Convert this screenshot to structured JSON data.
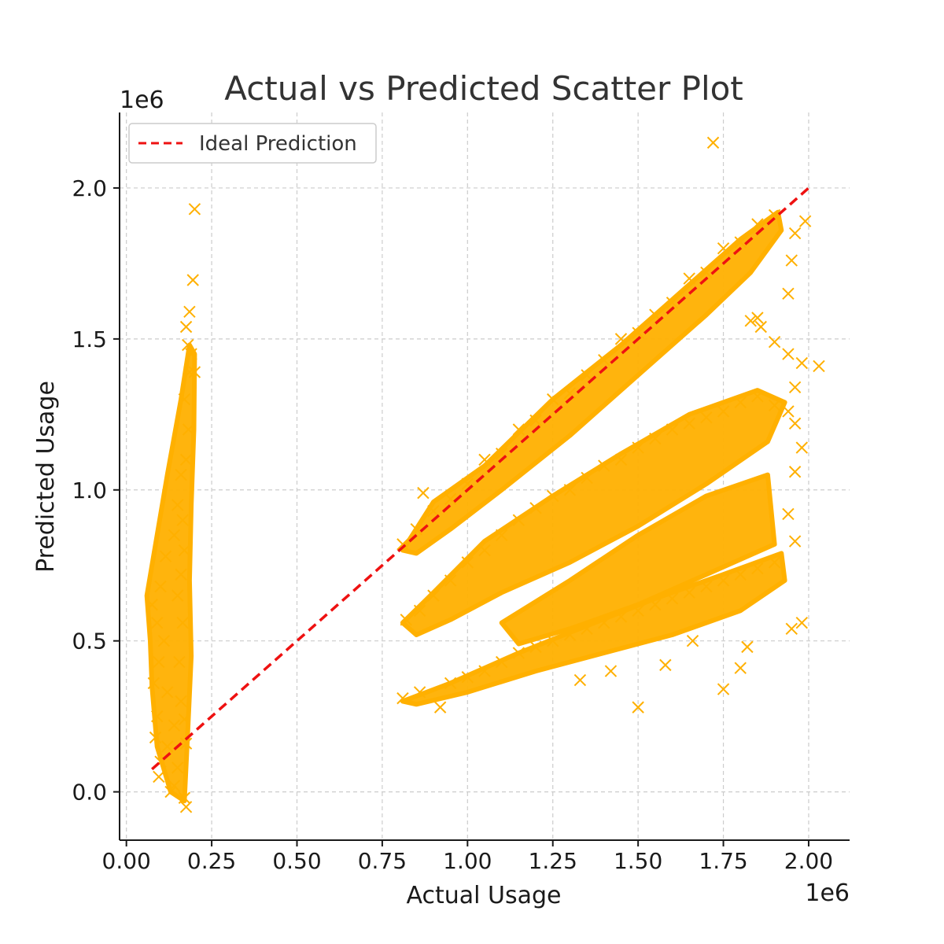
{
  "chart_data": {
    "type": "scatter",
    "title": "Actual vs Predicted Scatter Plot",
    "xlabel": "Actual Usage",
    "ylabel": "Predicted Usage",
    "x_offset_label": "1e6",
    "y_offset_label": "1e6",
    "xlim": [
      -20000,
      2120000
    ],
    "ylim": [
      -160000,
      2250000
    ],
    "x_ticks": [
      0,
      250000,
      500000,
      750000,
      1000000,
      1250000,
      1500000,
      1750000,
      2000000
    ],
    "x_tick_labels": [
      "0.00",
      "0.25",
      "0.50",
      "0.75",
      "1.00",
      "1.25",
      "1.50",
      "1.75",
      "2.00"
    ],
    "y_ticks": [
      0,
      500000,
      1000000,
      1500000,
      2000000
    ],
    "y_tick_labels": [
      "0.0",
      "0.5",
      "1.0",
      "1.5",
      "2.0"
    ],
    "grid": true,
    "legend_position": "top-left",
    "marker": "x",
    "series": [
      {
        "name": "",
        "color": "#FFB000",
        "points": [
          [
            200000,
            1930000
          ],
          [
            195000,
            1695000
          ],
          [
            185000,
            1590000
          ],
          [
            175000,
            1540000
          ],
          [
            180000,
            1480000
          ],
          [
            190000,
            1450000
          ],
          [
            185000,
            1390000
          ],
          [
            200000,
            1390000
          ],
          [
            170000,
            1300000
          ],
          [
            182000,
            1200000
          ],
          [
            160000,
            1050000
          ],
          [
            175000,
            1100000
          ],
          [
            150000,
            950000
          ],
          [
            165000,
            900000
          ],
          [
            140000,
            850000
          ],
          [
            170000,
            800000
          ],
          [
            115000,
            780000
          ],
          [
            160000,
            720000
          ],
          [
            100000,
            680000
          ],
          [
            150000,
            650000
          ],
          [
            75000,
            620000
          ],
          [
            90000,
            560000
          ],
          [
            165000,
            560000
          ],
          [
            110000,
            500000
          ],
          [
            95000,
            430000
          ],
          [
            155000,
            430000
          ],
          [
            80000,
            360000
          ],
          [
            120000,
            330000
          ],
          [
            160000,
            300000
          ],
          [
            90000,
            250000
          ],
          [
            140000,
            220000
          ],
          [
            170000,
            240000
          ],
          [
            85000,
            180000
          ],
          [
            120000,
            150000
          ],
          [
            175000,
            160000
          ],
          [
            100000,
            100000
          ],
          [
            150000,
            80000
          ],
          [
            95000,
            50000
          ],
          [
            140000,
            20000
          ],
          [
            170000,
            -20000
          ],
          [
            175000,
            -50000
          ],
          [
            130000,
            0
          ],
          [
            810000,
            820000
          ],
          [
            850000,
            870000
          ],
          [
            870000,
            990000
          ],
          [
            900000,
            930000
          ],
          [
            950000,
            970000
          ],
          [
            1000000,
            1020000
          ],
          [
            1050000,
            1100000
          ],
          [
            1100000,
            1120000
          ],
          [
            1150000,
            1200000
          ],
          [
            1200000,
            1230000
          ],
          [
            1250000,
            1300000
          ],
          [
            1300000,
            1320000
          ],
          [
            1350000,
            1380000
          ],
          [
            1400000,
            1430000
          ],
          [
            1450000,
            1500000
          ],
          [
            1500000,
            1520000
          ],
          [
            1550000,
            1580000
          ],
          [
            1600000,
            1620000
          ],
          [
            1650000,
            1700000
          ],
          [
            1700000,
            1720000
          ],
          [
            1750000,
            1800000
          ],
          [
            1800000,
            1820000
          ],
          [
            1850000,
            1880000
          ],
          [
            1900000,
            1910000
          ],
          [
            1720000,
            2150000
          ],
          [
            1990000,
            1890000
          ],
          [
            1960000,
            1850000
          ],
          [
            1950000,
            1760000
          ],
          [
            1940000,
            1650000
          ],
          [
            1830000,
            1560000
          ],
          [
            1850000,
            1570000
          ],
          [
            1860000,
            1540000
          ],
          [
            1900000,
            1490000
          ],
          [
            1940000,
            1450000
          ],
          [
            1980000,
            1420000
          ],
          [
            2030000,
            1410000
          ],
          [
            1960000,
            1340000
          ],
          [
            1940000,
            1260000
          ],
          [
            1960000,
            1220000
          ],
          [
            1980000,
            1140000
          ],
          [
            1960000,
            1060000
          ],
          [
            1940000,
            920000
          ],
          [
            1960000,
            830000
          ],
          [
            1980000,
            560000
          ],
          [
            1950000,
            540000
          ],
          [
            1820000,
            480000
          ],
          [
            1800000,
            410000
          ],
          [
            1750000,
            340000
          ],
          [
            1500000,
            280000
          ],
          [
            820000,
            570000
          ],
          [
            860000,
            600000
          ],
          [
            900000,
            650000
          ],
          [
            950000,
            700000
          ],
          [
            1000000,
            760000
          ],
          [
            1050000,
            800000
          ],
          [
            1100000,
            850000
          ],
          [
            1150000,
            900000
          ],
          [
            1200000,
            940000
          ],
          [
            1250000,
            980000
          ],
          [
            1300000,
            1000000
          ],
          [
            1350000,
            1040000
          ],
          [
            1400000,
            1080000
          ],
          [
            1450000,
            1100000
          ],
          [
            1500000,
            1140000
          ],
          [
            1550000,
            1170000
          ],
          [
            1600000,
            1200000
          ],
          [
            1650000,
            1220000
          ],
          [
            1700000,
            1240000
          ],
          [
            1750000,
            1260000
          ],
          [
            1800000,
            1290000
          ],
          [
            1850000,
            1310000
          ],
          [
            1900000,
            1280000
          ],
          [
            810000,
            310000
          ],
          [
            860000,
            330000
          ],
          [
            920000,
            280000
          ],
          [
            950000,
            360000
          ],
          [
            1000000,
            380000
          ],
          [
            1050000,
            400000
          ],
          [
            1100000,
            430000
          ],
          [
            1150000,
            460000
          ],
          [
            1200000,
            480000
          ],
          [
            1250000,
            500000
          ],
          [
            1300000,
            520000
          ],
          [
            1350000,
            540000
          ],
          [
            1400000,
            560000
          ],
          [
            1450000,
            580000
          ],
          [
            1500000,
            600000
          ],
          [
            1550000,
            620000
          ],
          [
            1600000,
            640000
          ],
          [
            1650000,
            660000
          ],
          [
            1700000,
            680000
          ],
          [
            1750000,
            700000
          ],
          [
            1800000,
            720000
          ],
          [
            1850000,
            740000
          ],
          [
            1900000,
            760000
          ],
          [
            1330000,
            370000
          ],
          [
            1420000,
            400000
          ],
          [
            1580000,
            420000
          ],
          [
            1660000,
            500000
          ]
        ]
      }
    ],
    "reference_line": {
      "name": "Ideal Prediction",
      "color": "#EE1111",
      "style": "dashed",
      "from": [
        75000,
        75000
      ],
      "to": [
        2010000,
        2010000
      ]
    }
  }
}
